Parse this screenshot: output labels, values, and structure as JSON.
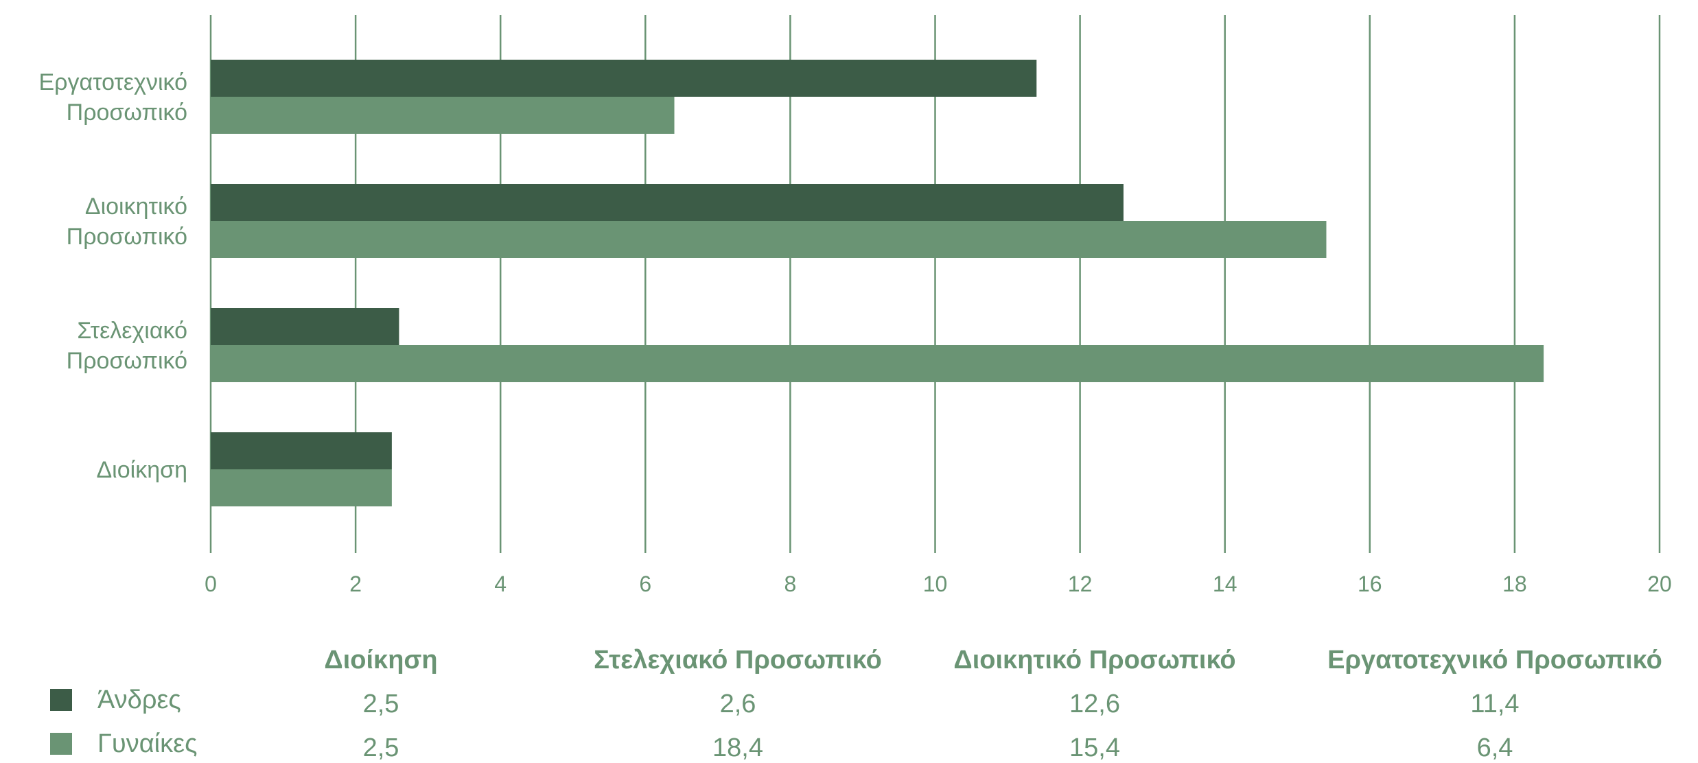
{
  "colors": {
    "men": "#3c5c47",
    "women": "#6a9474",
    "grid": "#6a9474",
    "text": "#6a9474"
  },
  "chart_data": {
    "type": "bar",
    "orientation": "horizontal",
    "categories": [
      "Διοίκηση",
      "Στελεχιακό Προσωπικό",
      "Διοικητικό Προσωπικό",
      "Εργατοτεχνικό Προσωπικό"
    ],
    "category_labels": [
      [
        "Διοίκηση"
      ],
      [
        "Στελεχιακό",
        "Προσωπικό"
      ],
      [
        "Διοικητικό",
        "Προσωπικό"
      ],
      [
        "Εργατοτεχνικό",
        "Προσωπικό"
      ]
    ],
    "series": [
      {
        "name": "Άνδρες",
        "values": [
          2.5,
          2.6,
          12.6,
          11.4
        ]
      },
      {
        "name": "Γυναίκες",
        "values": [
          2.5,
          18.4,
          15.4,
          6.4
        ]
      }
    ],
    "xlim": [
      0,
      20
    ],
    "xticks": [
      "0",
      "2",
      "4",
      "6",
      "8",
      "10",
      "12",
      "14",
      "16",
      "18",
      "20"
    ],
    "grid": "vertical",
    "legend_position": "bottom-left data table",
    "table": {
      "headers": [
        "Διοίκηση",
        "Στελεχιακό Προσωπικό",
        "Διοικητικό Προσωπικό",
        "Εργατοτεχνικό Προσωπικό"
      ],
      "rows": [
        {
          "label": "Άνδρες",
          "cells": [
            "2,5",
            "2,6",
            "12,6",
            "11,4"
          ]
        },
        {
          "label": "Γυναίκες",
          "cells": [
            "2,5",
            "18,4",
            "15,4",
            "6,4"
          ]
        }
      ]
    }
  }
}
